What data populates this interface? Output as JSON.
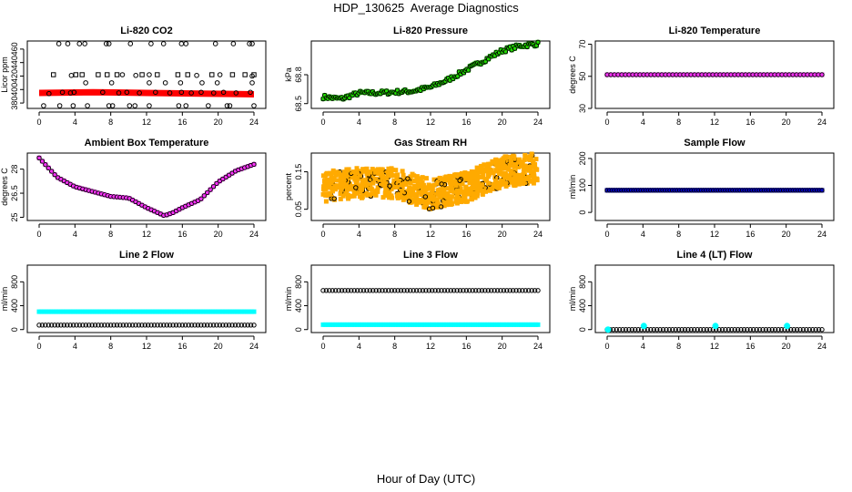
{
  "page": {
    "title": "HDP_130625  Average Diagnostics",
    "xlabel": "Hour of Day (UTC)"
  },
  "chart_data": [
    {
      "id": "co2",
      "type": "scatter",
      "title": "Li-820 CO2",
      "ylabel": "Licor ppm",
      "xlim": [
        0,
        24
      ],
      "ylim": [
        372,
        472
      ],
      "xticks": [
        0,
        4,
        8,
        12,
        16,
        20,
        24
      ],
      "yticks": [
        380,
        400,
        420,
        440,
        460
      ],
      "series": [
        {
          "kind": "band",
          "color": "#ff0000",
          "points": [
            [
              0,
              395
            ],
            [
              6,
              396
            ],
            [
              12,
              395
            ],
            [
              18,
              394
            ],
            [
              24,
              393
            ]
          ],
          "width": 7
        },
        {
          "kind": "points",
          "marker": "circle",
          "color": "#000000",
          "points": [
            [
              2.2,
              468
            ],
            [
              3.2,
              468
            ],
            [
              4.5,
              468
            ],
            [
              5.1,
              468
            ],
            [
              7.5,
              468
            ],
            [
              7.8,
              468
            ],
            [
              10.2,
              468
            ],
            [
              12.5,
              468
            ],
            [
              13.9,
              468
            ],
            [
              15.9,
              468
            ],
            [
              16.4,
              468
            ],
            [
              19.7,
              468
            ],
            [
              21.7,
              468
            ],
            [
              23.5,
              468
            ],
            [
              23.8,
              468
            ],
            [
              0.5,
              376
            ],
            [
              2.3,
              376
            ],
            [
              3.8,
              376
            ],
            [
              5.4,
              376
            ],
            [
              7.8,
              376
            ],
            [
              8.2,
              376
            ],
            [
              10.1,
              376
            ],
            [
              10.7,
              376
            ],
            [
              12.3,
              376
            ],
            [
              15.6,
              376
            ],
            [
              16.4,
              376
            ],
            [
              18.9,
              376
            ],
            [
              21.0,
              376
            ],
            [
              21.3,
              376
            ],
            [
              24.0,
              376
            ],
            [
              1.1,
              394
            ],
            [
              2.6,
              396
            ],
            [
              3.5,
              395
            ],
            [
              3.9,
              396
            ],
            [
              7.1,
              396
            ],
            [
              8.9,
              395
            ],
            [
              9.8,
              396
            ],
            [
              11.2,
              395
            ],
            [
              13.0,
              396
            ],
            [
              14.6,
              395
            ],
            [
              15.9,
              396
            ],
            [
              17.0,
              395
            ],
            [
              18.1,
              396
            ],
            [
              19.5,
              395
            ],
            [
              20.6,
              396
            ],
            [
              22.0,
              395
            ],
            [
              23.6,
              396
            ],
            [
              5.2,
              410
            ],
            [
              8.1,
              410
            ],
            [
              12.3,
              410
            ],
            [
              14.1,
              410
            ],
            [
              15.8,
              410
            ],
            [
              18.2,
              410
            ],
            [
              19.9,
              410
            ],
            [
              23.8,
              410
            ],
            [
              3.6,
              421
            ],
            [
              9.3,
              422
            ],
            [
              10.8,
              421
            ],
            [
              12.3,
              422
            ],
            [
              17.6,
              421
            ],
            [
              20.2,
              422
            ],
            [
              23.8,
              420
            ]
          ]
        },
        {
          "kind": "points",
          "marker": "square",
          "color": "#000000",
          "points": [
            [
              1.6,
              422
            ],
            [
              4.1,
              422
            ],
            [
              4.8,
              422
            ],
            [
              6.6,
              422
            ],
            [
              7.6,
              422
            ],
            [
              8.7,
              422
            ],
            [
              11.5,
              422
            ],
            [
              13.2,
              422
            ],
            [
              15.5,
              422
            ],
            [
              16.6,
              422
            ],
            [
              19.3,
              422
            ],
            [
              21.6,
              422
            ],
            [
              23.0,
              422
            ],
            [
              24.0,
              422
            ]
          ]
        }
      ]
    },
    {
      "id": "pressure",
      "type": "scatter",
      "title": "Li-820 Pressure",
      "ylabel": "kPa",
      "xlim": [
        0,
        24
      ],
      "ylim": [
        68.45,
        69.15
      ],
      "xticks": [
        0,
        4,
        8,
        12,
        16,
        20,
        24
      ],
      "yticks": [
        68.5,
        68.8
      ],
      "series": [
        {
          "kind": "trend",
          "fill": "#22dd00",
          "marker": "circle",
          "color": "#000000",
          "jitter": 0.03,
          "count": 140,
          "points": [
            [
              0,
              68.57
            ],
            [
              2,
              68.55
            ],
            [
              4,
              68.61
            ],
            [
              6,
              68.61
            ],
            [
              8,
              68.62
            ],
            [
              10,
              68.63
            ],
            [
              12,
              68.67
            ],
            [
              14,
              68.75
            ],
            [
              16,
              68.85
            ],
            [
              18,
              68.95
            ],
            [
              20,
              69.05
            ],
            [
              22,
              69.1
            ],
            [
              24,
              69.12
            ]
          ]
        }
      ]
    },
    {
      "id": "temp",
      "type": "scatter",
      "title": "Li-820 Temperature",
      "ylabel": "degrees C",
      "xlim": [
        0,
        24
      ],
      "ylim": [
        30,
        72
      ],
      "xticks": [
        0,
        4,
        8,
        12,
        16,
        20,
        24
      ],
      "yticks": [
        30,
        50,
        70
      ],
      "series": [
        {
          "kind": "trend",
          "fill": "#ff33ff",
          "marker": "circle",
          "color": "#000000",
          "jitter": 0.0,
          "count": 60,
          "points": [
            [
              0,
              51
            ],
            [
              24,
              51
            ]
          ]
        }
      ]
    },
    {
      "id": "ambient",
      "type": "scatter",
      "title": "Ambient Box Temperature",
      "ylabel": "degrees C",
      "xlim": [
        0,
        24
      ],
      "ylim": [
        24.8,
        29.0
      ],
      "xticks": [
        0,
        4,
        8,
        12,
        16,
        20,
        24
      ],
      "yticks": [
        25.0,
        26.5,
        28.0
      ],
      "series": [
        {
          "kind": "trend",
          "fill": "#ff33ff",
          "marker": "circle",
          "color": "#000000",
          "jitter": 0.0,
          "count": 70,
          "points": [
            [
              0,
              28.7
            ],
            [
              2,
              27.5
            ],
            [
              4,
              26.9
            ],
            [
              6,
              26.6
            ],
            [
              8,
              26.3
            ],
            [
              10,
              26.2
            ],
            [
              12,
              25.6
            ],
            [
              14,
              25.1
            ],
            [
              15,
              25.3
            ],
            [
              16,
              25.6
            ],
            [
              18,
              26.1
            ],
            [
              20,
              27.2
            ],
            [
              22,
              27.9
            ],
            [
              24,
              28.3
            ]
          ]
        }
      ]
    },
    {
      "id": "rh",
      "type": "scatter",
      "title": "Gas Stream RH",
      "ylabel": "percent",
      "xlim": [
        0,
        24
      ],
      "ylim": [
        0.02,
        0.2
      ],
      "xticks": [
        0,
        4,
        8,
        12,
        16,
        20,
        24
      ],
      "yticks": [
        0.05,
        0.15
      ],
      "series": [
        {
          "kind": "cloud",
          "fill": "#ffaa00",
          "marker": "circle",
          "color": "#000000",
          "jitter": 0.04,
          "count": 900,
          "points": [
            [
              0,
              0.11
            ],
            [
              4,
              0.12
            ],
            [
              8,
              0.12
            ],
            [
              12,
              0.09
            ],
            [
              16,
              0.11
            ],
            [
              20,
              0.15
            ],
            [
              24,
              0.16
            ]
          ]
        }
      ]
    },
    {
      "id": "sampleflow",
      "type": "scatter",
      "title": "Sample Flow",
      "ylabel": "ml/min",
      "xlim": [
        0,
        24
      ],
      "ylim": [
        -30,
        220
      ],
      "xticks": [
        0,
        4,
        8,
        12,
        16,
        20,
        24
      ],
      "yticks": [
        0,
        100,
        200
      ],
      "series": [
        {
          "kind": "trend",
          "fill": "#0000cc",
          "marker": "circle",
          "color": "#000000",
          "jitter": 0.0,
          "count": 90,
          "points": [
            [
              0,
              82
            ],
            [
              24,
              82
            ]
          ]
        }
      ]
    },
    {
      "id": "line2",
      "type": "scatter",
      "title": "Line 2 Flow",
      "ylabel": "ml/min",
      "xlim": [
        0,
        24
      ],
      "ylim": [
        -50,
        1080
      ],
      "xticks": [
        0,
        4,
        8,
        12,
        16,
        20,
        24
      ],
      "yticks": [
        0,
        400,
        800
      ],
      "series": [
        {
          "kind": "trend",
          "fill": "#00ffff",
          "marker": "none",
          "color": "#00ffff",
          "jitter": 0.0,
          "count": 90,
          "points": [
            [
              0,
              300
            ],
            [
              24,
              300
            ]
          ]
        },
        {
          "kind": "trend",
          "fill": "none",
          "marker": "circle",
          "color": "#000000",
          "jitter": 0.0,
          "count": 70,
          "points": [
            [
              0,
              75
            ],
            [
              24,
              75
            ]
          ]
        }
      ]
    },
    {
      "id": "line3",
      "type": "scatter",
      "title": "Line 3 Flow",
      "ylabel": "ml/min",
      "xlim": [
        0,
        24
      ],
      "ylim": [
        -50,
        1080
      ],
      "xticks": [
        0,
        4,
        8,
        12,
        16,
        20,
        24
      ],
      "yticks": [
        0,
        400,
        800
      ],
      "series": [
        {
          "kind": "trend",
          "fill": "none",
          "marker": "circle",
          "color": "#000000",
          "jitter": 0.0,
          "count": 70,
          "points": [
            [
              0,
              655
            ],
            [
              24,
              655
            ]
          ]
        },
        {
          "kind": "trend",
          "fill": "#00ffff",
          "marker": "none",
          "color": "#00ffff",
          "jitter": 0.0,
          "count": 90,
          "points": [
            [
              0,
              82
            ],
            [
              24,
              82
            ]
          ]
        }
      ]
    },
    {
      "id": "line4",
      "type": "scatter",
      "title": "Line 4 (LT) Flow",
      "ylabel": "ml/min",
      "xlim": [
        0,
        24
      ],
      "ylim": [
        -50,
        1080
      ],
      "xticks": [
        0,
        4,
        8,
        12,
        16,
        20,
        24
      ],
      "yticks": [
        0,
        400,
        800
      ],
      "series": [
        {
          "kind": "trend",
          "fill": "none",
          "marker": "circle",
          "color": "#000000",
          "jitter": 0.0,
          "count": 70,
          "points": [
            [
              0,
              0
            ],
            [
              24,
              0
            ]
          ]
        },
        {
          "kind": "points",
          "marker": "dot",
          "color": "#00ffff",
          "points": [
            [
              0.1,
              0
            ],
            [
              4.1,
              60
            ],
            [
              12.1,
              60
            ],
            [
              20.1,
              60
            ]
          ]
        }
      ]
    }
  ]
}
